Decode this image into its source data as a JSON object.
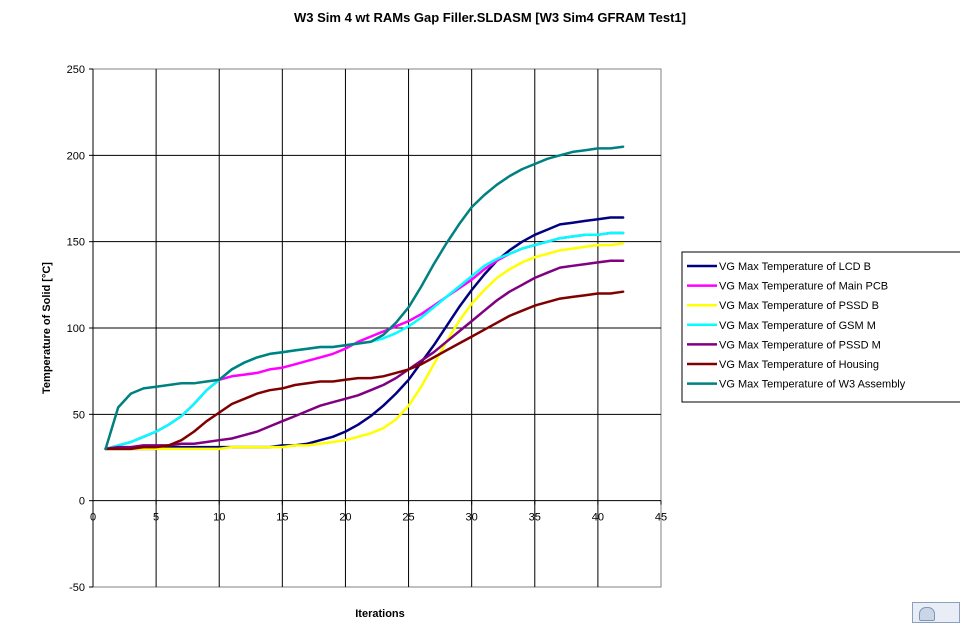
{
  "chart_data": {
    "type": "line",
    "title": "W3 Sim 4 wt RAMs Gap Filler.SLDASM [W3 Sim4 GFRAM Test1]",
    "xlabel": "Iterations",
    "ylabel": "Temperature of Solid  [°C]",
    "xlim": [
      0,
      45
    ],
    "ylim": [
      -50,
      250
    ],
    "xticks": [
      "0",
      "5",
      "10",
      "15",
      "20",
      "25",
      "30",
      "35",
      "40",
      "45"
    ],
    "yticks": [
      "-50",
      "0",
      "50",
      "100",
      "150",
      "200",
      "250"
    ],
    "grid": true,
    "legend_position": "right",
    "x": [
      1,
      2,
      3,
      4,
      5,
      6,
      7,
      8,
      9,
      10,
      11,
      12,
      13,
      14,
      15,
      16,
      17,
      18,
      19,
      20,
      21,
      22,
      23,
      24,
      25,
      26,
      27,
      28,
      29,
      30,
      31,
      32,
      33,
      34,
      35,
      36,
      37,
      38,
      39,
      40,
      41,
      42
    ],
    "series": [
      {
        "name": "VG Max Temperature of LCD B",
        "color": "#000080",
        "values": [
          30,
          30,
          30,
          30,
          30,
          31,
          31,
          31,
          31,
          31,
          31,
          31,
          31,
          31,
          32,
          32,
          33,
          35,
          37,
          40,
          44,
          49,
          55,
          62,
          70,
          80,
          90,
          101,
          112,
          122,
          131,
          139,
          145,
          150,
          154,
          157,
          160,
          161,
          162,
          163,
          164,
          164
        ]
      },
      {
        "name": "VG Max Temperature of Main PCB",
        "color": "#ff00ff",
        "values": [
          30,
          32,
          34,
          37,
          40,
          44,
          49,
          56,
          64,
          70,
          72,
          73,
          74,
          76,
          77,
          79,
          81,
          83,
          85,
          88,
          92,
          95,
          98,
          101,
          104,
          108,
          113,
          118,
          123,
          128,
          134,
          139,
          143,
          146,
          148,
          150,
          152,
          153,
          154,
          154,
          155,
          155
        ]
      },
      {
        "name": "VG Max Temperature of PSSD B",
        "color": "#ffff00",
        "values": [
          30,
          30,
          30,
          30,
          30,
          30,
          30,
          30,
          30,
          30,
          31,
          31,
          31,
          31,
          31,
          32,
          32,
          33,
          34,
          35,
          37,
          39,
          42,
          47,
          55,
          66,
          79,
          92,
          104,
          114,
          122,
          129,
          134,
          138,
          141,
          143,
          145,
          146,
          147,
          148,
          148,
          149
        ]
      },
      {
        "name": "VG Max Temperature of GSM M",
        "color": "#00ffff",
        "values": [
          30,
          32,
          34,
          37,
          40,
          44,
          49,
          56,
          64,
          70,
          76,
          80,
          83,
          85,
          86,
          87,
          88,
          89,
          89,
          90,
          91,
          92,
          94,
          97,
          101,
          106,
          112,
          118,
          124,
          130,
          136,
          140,
          143,
          146,
          148,
          150,
          152,
          153,
          154,
          154,
          155,
          155
        ]
      },
      {
        "name": "VG Max Temperature of PSSD M",
        "color": "#800080",
        "values": [
          30,
          31,
          31,
          32,
          32,
          32,
          33,
          33,
          34,
          35,
          36,
          38,
          40,
          43,
          46,
          49,
          52,
          55,
          57,
          59,
          61,
          64,
          67,
          71,
          76,
          81,
          86,
          92,
          98,
          104,
          110,
          116,
          121,
          125,
          129,
          132,
          135,
          136,
          137,
          138,
          139,
          139
        ]
      },
      {
        "name": "VG Max Temperature of Housing",
        "color": "#800000",
        "values": [
          30,
          30,
          30,
          31,
          31,
          32,
          35,
          40,
          46,
          51,
          56,
          59,
          62,
          64,
          65,
          67,
          68,
          69,
          69,
          70,
          71,
          71,
          72,
          74,
          76,
          79,
          83,
          87,
          91,
          95,
          99,
          103,
          107,
          110,
          113,
          115,
          117,
          118,
          119,
          120,
          120,
          121
        ]
      },
      {
        "name": "VG Max Temperature of W3 Assembly",
        "color": "#008080",
        "values": [
          30,
          54,
          62,
          65,
          66,
          67,
          68,
          68,
          69,
          70,
          76,
          80,
          83,
          85,
          86,
          87,
          88,
          89,
          89,
          90,
          91,
          92,
          96,
          103,
          112,
          124,
          137,
          149,
          160,
          170,
          177,
          183,
          188,
          192,
          195,
          198,
          200,
          202,
          203,
          204,
          204,
          205
        ]
      }
    ]
  }
}
